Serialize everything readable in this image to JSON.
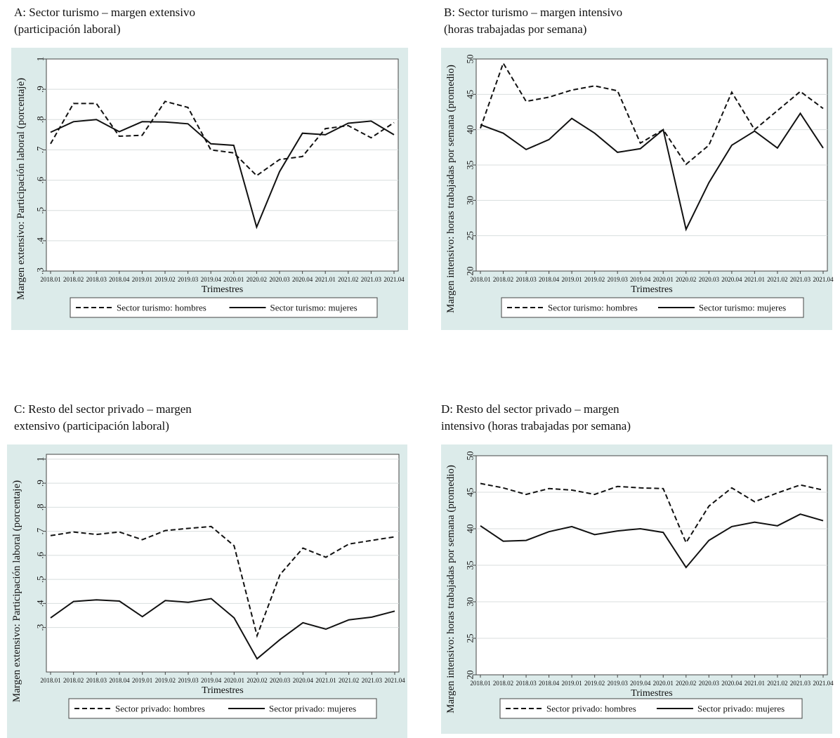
{
  "categories": [
    "2018.01",
    "2018.02",
    "2018.03",
    "2018.04",
    "2019.01",
    "2019.02",
    "2019.03",
    "2019.04",
    "2020.01",
    "2020.02",
    "2020.03",
    "2020.04",
    "2021.01",
    "2021.02",
    "2021.03",
    "2021.04"
  ],
  "panels": [
    {
      "id": "A",
      "title_line1": "A: Sector turismo – margen extensivo",
      "title_line2": "(participación laboral)",
      "legend_men": "Sector turismo: hombres",
      "legend_women": "Sector turismo: mujeres"
    },
    {
      "id": "B",
      "title_line1": "B: Sector turismo – margen intensivo",
      "title_line2": "(horas trabajadas por semana)",
      "legend_men": "Sector turismo: hombres",
      "legend_women": "Sector turismo: mujeres"
    },
    {
      "id": "C",
      "title_line1": "C: Resto del sector privado – margen",
      "title_line2": "extensivo (participación laboral)",
      "legend_men": "Sector privado: hombres",
      "legend_women": "Sector privado: mujeres"
    },
    {
      "id": "D",
      "title_line1": "D: Resto del sector privado – margen",
      "title_line2": "intensivo (horas trabajadas por semana)",
      "legend_men": "Sector privado: hombres",
      "legend_women": "Sector privado: mujeres"
    }
  ],
  "chart_data": [
    {
      "type": "line",
      "title": "A: Sector turismo – margen extensivo (participación laboral)",
      "xlabel": "Trimestres",
      "ylabel": "Margen extensivo: Participación laboral (porcentaje)",
      "ylim": [
        0.3,
        1.0
      ],
      "yticks": [
        ".3",
        ".4",
        ".5",
        ".6",
        ".7",
        ".8",
        ".9",
        "1"
      ],
      "ytick_values": [
        0.3,
        0.4,
        0.5,
        0.6,
        0.7,
        0.8,
        0.9,
        1.0
      ],
      "categories": [
        "2018.01",
        "2018.02",
        "2018.03",
        "2018.04",
        "2019.01",
        "2019.02",
        "2019.03",
        "2019.04",
        "2020.01",
        "2020.02",
        "2020.03",
        "2020.04",
        "2021.01",
        "2021.02",
        "2021.03",
        "2021.04"
      ],
      "series": [
        {
          "name": "Sector turismo: hombres",
          "style": "dashed",
          "values": [
            0.72,
            0.853,
            0.853,
            0.745,
            0.748,
            0.86,
            0.84,
            0.7,
            0.69,
            0.615,
            0.668,
            0.678,
            0.77,
            0.78,
            0.74,
            0.79
          ]
        },
        {
          "name": "Sector turismo: mujeres",
          "style": "solid",
          "values": [
            0.758,
            0.793,
            0.8,
            0.76,
            0.793,
            0.792,
            0.786,
            0.72,
            0.715,
            0.445,
            0.628,
            0.755,
            0.75,
            0.788,
            0.795,
            0.75
          ]
        }
      ],
      "grid": true,
      "legend": "bottom"
    },
    {
      "type": "line",
      "title": "B: Sector turismo – margen intensivo (horas trabajadas por semana)",
      "xlabel": "Trimestres",
      "ylabel": "Margen intensivo: horas trabajadas por semana (promedio)",
      "ylim": [
        20,
        50
      ],
      "yticks": [
        "20",
        "25",
        "30",
        "35",
        "40",
        "45",
        "50"
      ],
      "ytick_values": [
        20,
        25,
        30,
        35,
        40,
        45,
        50
      ],
      "categories": [
        "2018.01",
        "2018.02",
        "2018.03",
        "2018.04",
        "2019.01",
        "2019.02",
        "2019.03",
        "2019.04",
        "2020.01",
        "2020.02",
        "2020.03",
        "2020.04",
        "2021.01",
        "2021.02",
        "2021.03",
        "2021.04"
      ],
      "series": [
        {
          "name": "Sector turismo: hombres",
          "style": "dashed",
          "values": [
            40.2,
            49.4,
            44.0,
            44.6,
            45.6,
            46.2,
            45.5,
            38.1,
            40.0,
            35.1,
            37.8,
            45.3,
            40.0,
            42.7,
            45.4,
            43.0
          ]
        },
        {
          "name": "Sector turismo: mujeres",
          "style": "solid",
          "values": [
            40.7,
            39.5,
            37.2,
            38.6,
            41.6,
            39.5,
            36.8,
            37.3,
            40.0,
            25.9,
            32.5,
            37.8,
            39.8,
            37.4,
            42.3,
            37.4
          ]
        }
      ],
      "grid": true,
      "legend": "bottom"
    },
    {
      "type": "line",
      "title": "C: Resto del sector privado – margen extensivo (participación laboral)",
      "xlabel": "Trimestres",
      "ylabel": "Margen extensivo: Participación laboral (porcentaje)",
      "ylim": [
        0.115,
        1.02
      ],
      "yticks": [
        ".3",
        ".4",
        ".5",
        ".6",
        ".7",
        ".8",
        ".9",
        "1"
      ],
      "ytick_values": [
        0.3,
        0.4,
        0.5,
        0.6,
        0.7,
        0.8,
        0.9,
        1.0
      ],
      "categories": [
        "2018.01",
        "2018.02",
        "2018.03",
        "2018.04",
        "2019.01",
        "2019.02",
        "2019.03",
        "2019.04",
        "2020.01",
        "2020.02",
        "2020.03",
        "2020.04",
        "2021.01",
        "2021.02",
        "2021.03",
        "2021.04"
      ],
      "series": [
        {
          "name": "Sector privado: hombres",
          "style": "dashed",
          "values": [
            0.682,
            0.697,
            0.687,
            0.697,
            0.665,
            0.703,
            0.712,
            0.72,
            0.64,
            0.266,
            0.52,
            0.63,
            0.592,
            0.647,
            0.662,
            0.677
          ]
        },
        {
          "name": "Sector privado: mujeres",
          "style": "solid",
          "values": [
            0.34,
            0.408,
            0.415,
            0.41,
            0.345,
            0.412,
            0.405,
            0.42,
            0.34,
            0.17,
            0.25,
            0.32,
            0.293,
            0.332,
            0.343,
            0.368
          ]
        }
      ],
      "grid": true,
      "legend": "bottom"
    },
    {
      "type": "line",
      "title": "D: Resto del sector privado – margen intensivo (horas trabajadas por semana)",
      "xlabel": "Trimestres",
      "ylabel": "Margen intensivo: horas trabajadas por semana (promedio)",
      "ylim": [
        20,
        50
      ],
      "yticks": [
        "20",
        "25",
        "30",
        "35",
        "40",
        "45",
        "50"
      ],
      "ytick_values": [
        20,
        25,
        30,
        35,
        40,
        45,
        50
      ],
      "categories": [
        "2018.01",
        "2018.02",
        "2018.03",
        "2018.04",
        "2019.01",
        "2019.02",
        "2019.03",
        "2019.04",
        "2020.01",
        "2020.02",
        "2020.03",
        "2020.04",
        "2021.01",
        "2021.02",
        "2021.03",
        "2021.04"
      ],
      "series": [
        {
          "name": "Sector privado: hombres",
          "style": "dashed",
          "values": [
            46.2,
            45.6,
            44.7,
            45.5,
            45.3,
            44.7,
            45.8,
            45.6,
            45.5,
            38.1,
            43.1,
            45.6,
            43.7,
            44.9,
            46.0,
            45.3
          ]
        },
        {
          "name": "Sector privado: mujeres",
          "style": "solid",
          "values": [
            40.4,
            38.3,
            38.4,
            39.6,
            40.3,
            39.2,
            39.7,
            40.0,
            39.5,
            34.7,
            38.4,
            40.3,
            40.9,
            40.4,
            42.0,
            41.1
          ]
        }
      ],
      "grid": true,
      "legend": "bottom"
    }
  ]
}
